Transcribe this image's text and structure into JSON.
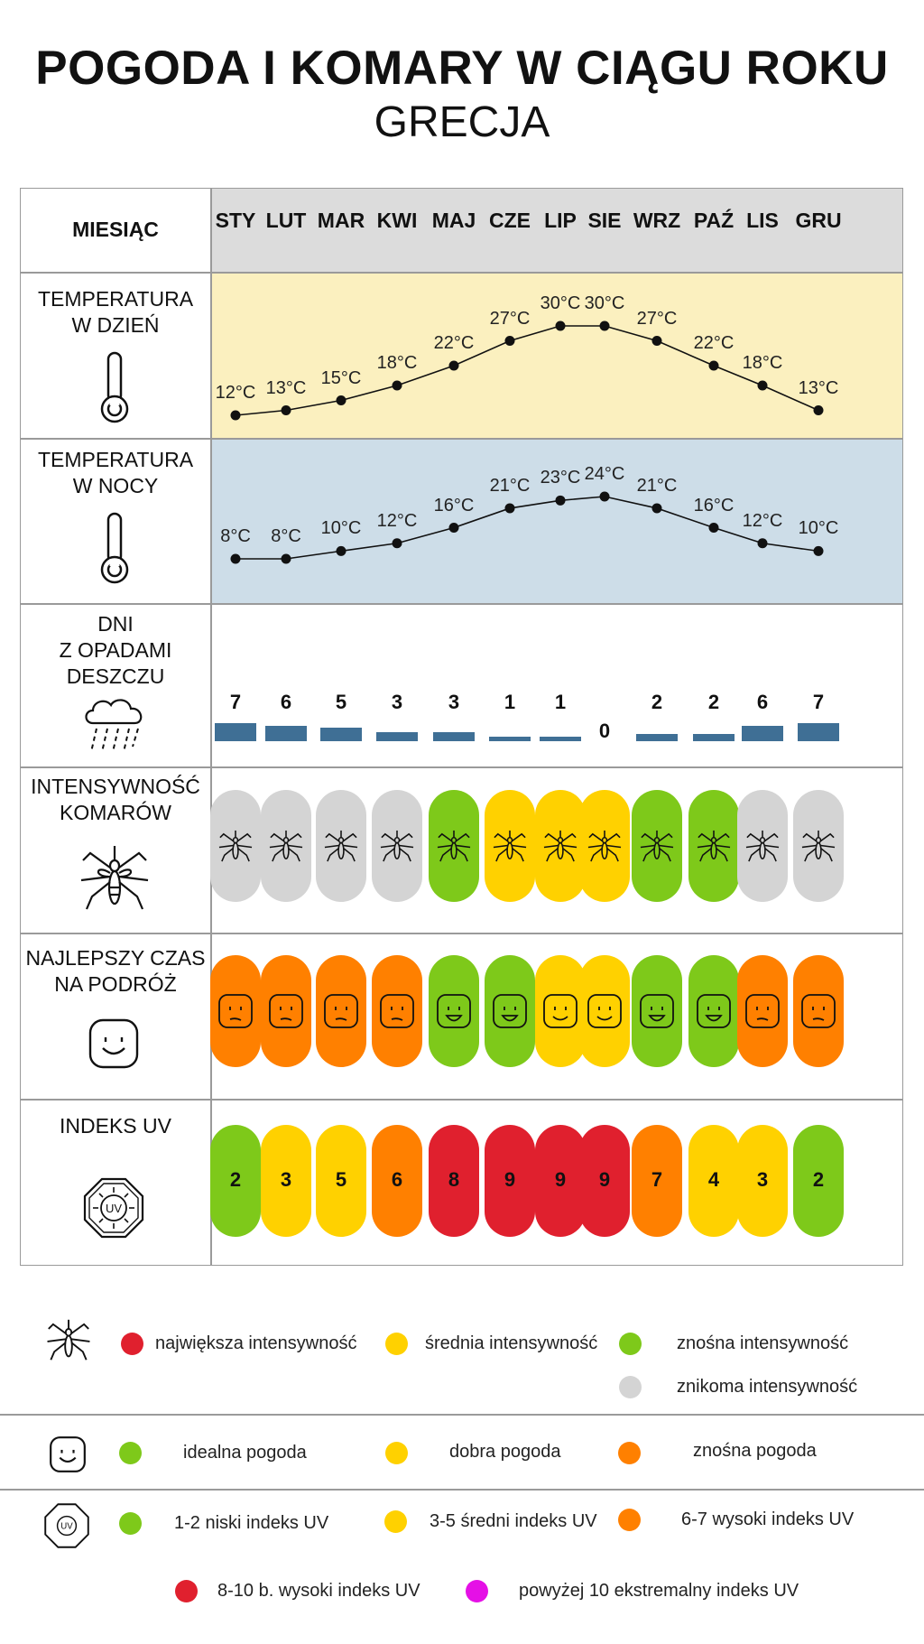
{
  "title": "POGODA I KOMARY W CIĄGU ROKU",
  "subtitle": "GRECJA",
  "header_label": "MIESIĄC",
  "months": [
    "STY",
    "LUT",
    "MAR",
    "KWI",
    "MAJ",
    "CZE",
    "LIP",
    "SIE",
    "WRZ",
    "PAŹ",
    "LIS",
    "GRU"
  ],
  "row_labels": {
    "day_temp": [
      "TEMPERATURA",
      "W DZIEŃ"
    ],
    "night_temp": [
      "TEMPERATURA",
      "W NOCY"
    ],
    "rain": [
      "DNI",
      "Z OPADAMI",
      "DESZCZU"
    ],
    "mosquito": [
      "INTENSYWNOŚĆ",
      "KOMARÓW"
    ],
    "travel": [
      "NAJLEPSZY CZAS",
      "NA PODRÓŻ"
    ],
    "uv": [
      "INDEKS UV"
    ]
  },
  "colors": {
    "day_bg": "#fbf0bf",
    "night_bg": "#cddde8",
    "header_bg": "#dcdcdc",
    "rain_bar": "#3f6f95",
    "red": "#e0202e",
    "yellow": "#ffd100",
    "green": "#7ec91a",
    "grey": "#d4d4d4",
    "orange": "#ff8000",
    "magenta": "#e510e6"
  },
  "chart_data": {
    "type": "table",
    "day_temperature_c": [
      12,
      13,
      15,
      18,
      22,
      27,
      30,
      30,
      27,
      22,
      18,
      13
    ],
    "day_temperature_labels": [
      "12°C",
      "13°C",
      "15°C",
      "18°C",
      "22°C",
      "27°C",
      "30°C",
      "30°C",
      "27°C",
      "22°C",
      "18°C",
      "13°C"
    ],
    "night_temperature_c": [
      8,
      8,
      10,
      12,
      16,
      21,
      23,
      24,
      21,
      16,
      12,
      10
    ],
    "night_temperature_labels": [
      "8°C",
      "8°C",
      "10°C",
      "12°C",
      "16°C",
      "21°C",
      "23°C",
      "24°C",
      "21°C",
      "16°C",
      "12°C",
      "10°C"
    ],
    "rain_days": [
      7,
      6,
      5,
      3,
      3,
      1,
      1,
      0,
      2,
      2,
      6,
      7
    ],
    "rain_days_labels": [
      "7",
      "6",
      "5",
      "3",
      "3",
      "1",
      "1",
      "0",
      "2",
      "2",
      "6",
      "7"
    ],
    "mosquito_intensity": [
      "grey",
      "grey",
      "grey",
      "grey",
      "green",
      "yellow",
      "yellow",
      "yellow",
      "green",
      "green",
      "grey",
      "grey"
    ],
    "travel_weather": [
      "orange",
      "orange",
      "orange",
      "orange",
      "green",
      "green",
      "yellow",
      "yellow",
      "green",
      "green",
      "orange",
      "orange"
    ],
    "uv_index": [
      2,
      3,
      5,
      6,
      8,
      9,
      9,
      9,
      7,
      4,
      3,
      2
    ],
    "uv_index_labels": [
      "2",
      "3",
      "5",
      "6",
      "8",
      "9",
      "9",
      "9",
      "7",
      "4",
      "3",
      "2"
    ],
    "uv_colors": [
      "green",
      "yellow",
      "yellow",
      "orange",
      "red",
      "red",
      "red",
      "red",
      "orange",
      "yellow",
      "yellow",
      "green"
    ]
  },
  "legend": {
    "mosquito": [
      {
        "color": "red",
        "label": "największa intensywność"
      },
      {
        "color": "yellow",
        "label": "średnia intensywność"
      },
      {
        "color": "green",
        "label": "znośna intensywność"
      },
      {
        "color": "grey",
        "label": "znikoma intensywność"
      }
    ],
    "weather": [
      {
        "color": "green",
        "label": "idealna pogoda"
      },
      {
        "color": "yellow",
        "label": "dobra pogoda"
      },
      {
        "color": "orange",
        "label": "znośna pogoda"
      }
    ],
    "uv": [
      {
        "color": "green",
        "label": "1-2 niski indeks UV"
      },
      {
        "color": "yellow",
        "label": "3-5 średni indeks UV"
      },
      {
        "color": "orange",
        "label": "6-7 wysoki indeks UV"
      },
      {
        "color": "red",
        "label": "8-10 b. wysoki indeks UV"
      },
      {
        "color": "magenta",
        "label": "powyżej 10 ekstremalny indeks UV"
      }
    ],
    "uv_icon_text": "UV"
  }
}
